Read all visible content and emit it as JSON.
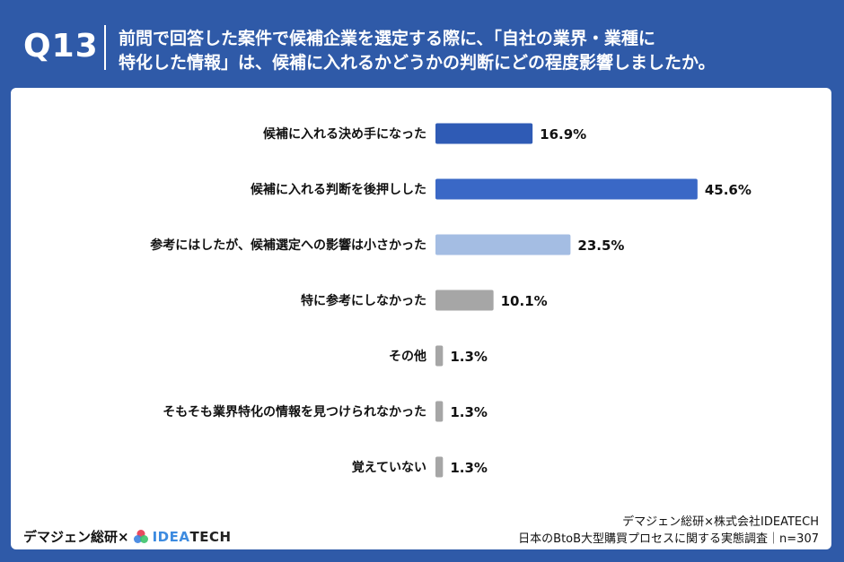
{
  "header": {
    "qnum": "Q13",
    "question_line1": "前問で回答した案件で候補企業を選定する際に、「自社の業界・業種に",
    "question_line2": "特化した情報」は、候補に入れるかどうかの判断にどの程度影響しましたか。"
  },
  "chart_data": {
    "type": "bar",
    "orientation": "horizontal",
    "categories": [
      "候補に入れる決め手になった",
      "候補に入れる判断を後押しした",
      "参考にはしたが、候補選定への影響は小さかった",
      "特に参考にしなかった",
      "その他",
      "そもそも業界特化の情報を見つけられなかった",
      "覚えていない"
    ],
    "values": [
      16.9,
      45.6,
      23.5,
      10.1,
      1.3,
      1.3,
      1.3
    ],
    "value_labels": [
      "16.9%",
      "45.6%",
      "23.5%",
      "10.1%",
      "1.3%",
      "1.3%",
      "1.3%"
    ],
    "colors": [
      "#2f5bb5",
      "#3a68c6",
      "#a4bde3",
      "#a6a6a6",
      "#a6a6a6",
      "#a6a6a6",
      "#a6a6a6"
    ],
    "unit": "%",
    "xlim": [
      0,
      50
    ],
    "grid": false,
    "legend": "none"
  },
  "footer": {
    "brand_left": "デマジェン総研×",
    "brand_idea": "IDEA",
    "brand_tech": "TECH",
    "source_line1": "デマジェン総研×株式会社IDEATECH",
    "source_line2": "日本のBtoB大型購買プロセスに関する実態調査｜n=307"
  }
}
